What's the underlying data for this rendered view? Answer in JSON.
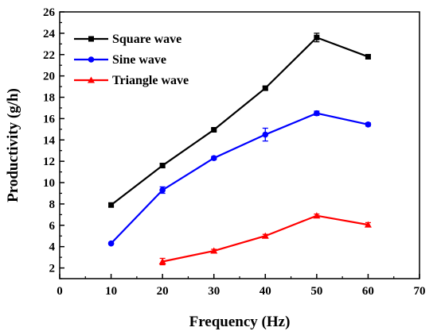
{
  "chart_data": {
    "type": "line",
    "xlabel": "Frequency (Hz)",
    "ylabel": "Productivity (g/h)",
    "xlim": [
      0,
      70
    ],
    "ylim": [
      1,
      26
    ],
    "xticks": [
      0,
      10,
      20,
      30,
      40,
      50,
      60,
      70
    ],
    "yticks": [
      2,
      4,
      6,
      8,
      10,
      12,
      14,
      16,
      18,
      20,
      22,
      24,
      26
    ],
    "grid": false,
    "legend_position": "top-left",
    "series": [
      {
        "name": "Square wave",
        "color": "#000000",
        "marker": "square",
        "x": [
          10,
          20,
          30,
          40,
          50,
          60
        ],
        "values": [
          7.9,
          11.6,
          14.95,
          18.85,
          23.6,
          21.8
        ],
        "errors": [
          0.15,
          0.2,
          0.1,
          0.15,
          0.4,
          0.2
        ]
      },
      {
        "name": "Sine wave",
        "color": "#0000ff",
        "marker": "circle",
        "x": [
          10,
          20,
          30,
          40,
          50,
          60
        ],
        "values": [
          4.3,
          9.3,
          12.3,
          14.5,
          16.5,
          15.45
        ],
        "errors": [
          0.1,
          0.3,
          0.15,
          0.6,
          0.2,
          0.15
        ]
      },
      {
        "name": "Triangle wave",
        "color": "#ff0000",
        "marker": "triangle",
        "x": [
          20,
          30,
          40,
          50,
          60
        ],
        "values": [
          2.6,
          3.6,
          5.0,
          6.9,
          6.05
        ],
        "errors": [
          0.3,
          0.15,
          0.15,
          0.15,
          0.2
        ]
      }
    ]
  }
}
